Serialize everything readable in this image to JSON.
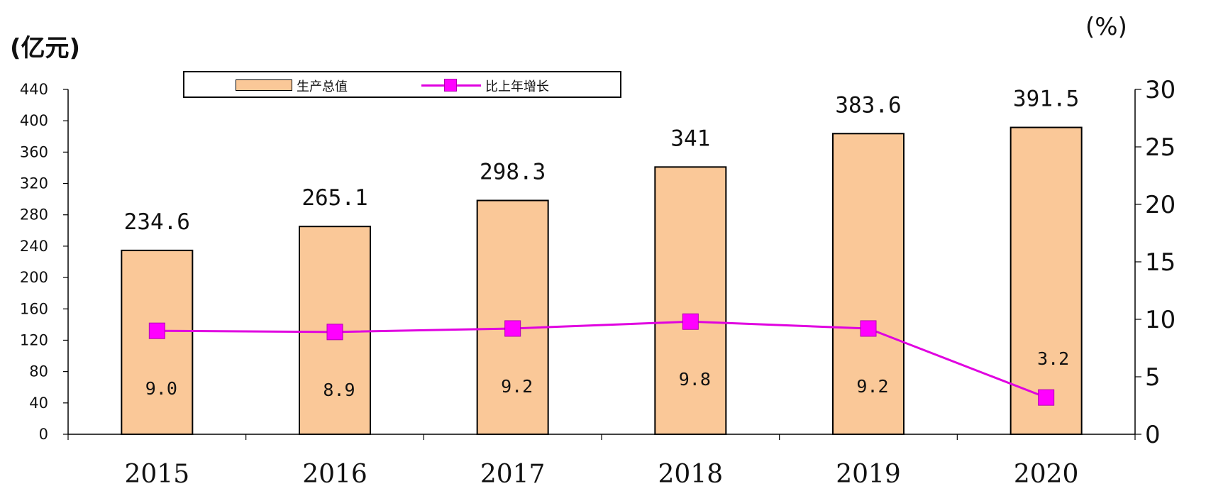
{
  "units": {
    "left": "(亿元)",
    "right": "(%)"
  },
  "legend": {
    "bar_label": "生产总值",
    "line_label": "比上年增长"
  },
  "colors": {
    "bar_fill": "#fac898",
    "line": "#e000e0",
    "marker": "#ff00ff"
  },
  "chart_data": {
    "type": "bar",
    "categories": [
      "2015",
      "2016",
      "2017",
      "2018",
      "2019",
      "2020"
    ],
    "series": [
      {
        "name": "生产总值",
        "type": "bar",
        "axis": "left",
        "values": [
          234.6,
          265.1,
          298.3,
          341,
          383.6,
          391.5
        ],
        "labels": [
          "234.6",
          "265.1",
          "298.3",
          "341",
          "383.6",
          "391.5"
        ]
      },
      {
        "name": "比上年增长",
        "type": "line",
        "axis": "right",
        "values": [
          9.0,
          8.9,
          9.2,
          9.8,
          9.2,
          3.2
        ],
        "labels": [
          "9.0",
          "8.9",
          "9.2",
          "9.8",
          "9.2",
          "3.2"
        ]
      }
    ],
    "y_left": {
      "min": 0,
      "max": 440,
      "ticks": [
        0,
        40,
        80,
        120,
        160,
        200,
        240,
        280,
        320,
        360,
        400,
        440
      ]
    },
    "y_right": {
      "min": 0,
      "max": 30,
      "ticks": [
        0,
        5,
        10,
        15,
        20,
        25,
        30
      ]
    },
    "grid": false,
    "legend_position": "top-left"
  }
}
